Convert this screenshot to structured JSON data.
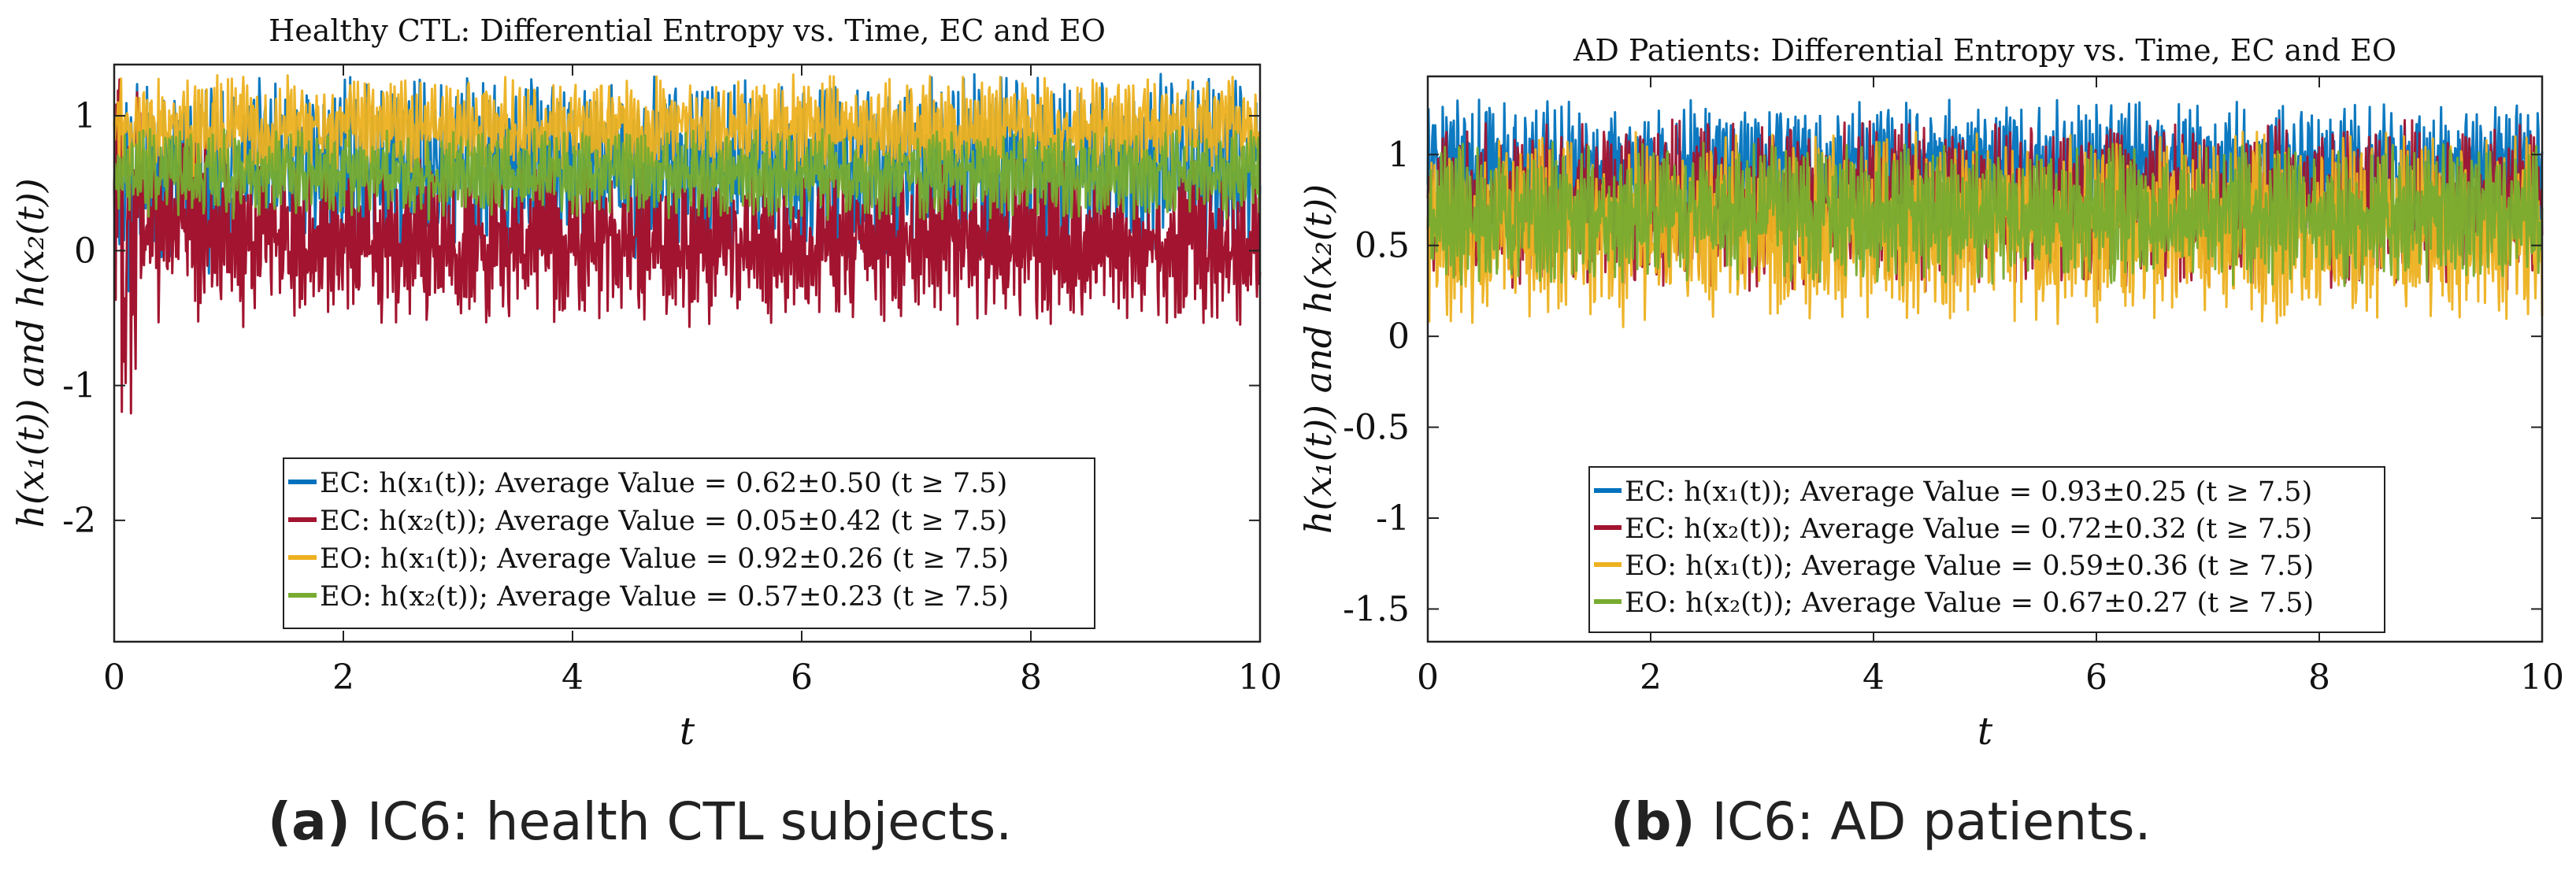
{
  "chart_data": [
    {
      "type": "line",
      "panel": "a",
      "title": "Healthy CTL: Differential Entropy vs. Time, EC and EO",
      "xlabel": "t",
      "ylabel": "h(x₁(t)) and h(x₂(t))",
      "xlim": [
        0,
        10
      ],
      "ylim": [
        -2.9,
        1.38
      ],
      "xticks": [
        0,
        2,
        4,
        6,
        8,
        10
      ],
      "xtick_labels": [
        "0",
        "2",
        "4",
        "6",
        "8",
        "10"
      ],
      "yticks": [
        -2,
        -1,
        0,
        1
      ],
      "ytick_labels": [
        "-2",
        "-1",
        "0",
        "1"
      ],
      "legend_position": "bottom-right",
      "series": [
        {
          "name": "EC: h(x₁(t)); Average Value = 0.62±0.50 (t ≥ 7.5)",
          "color": "#0072BD",
          "mean": 0.62,
          "std": 0.5
        },
        {
          "name": "EC: h(x₂(t)); Average Value = 0.05±0.42 (t ≥ 7.5)",
          "color": "#A2142F",
          "mean": 0.05,
          "std": 0.42
        },
        {
          "name": "EO: h(x₁(t)); Average Value = 0.92±0.26 (t ≥ 7.5)",
          "color": "#EDB120",
          "mean": 0.92,
          "std": 0.26
        },
        {
          "name": "EO: h(x₂(t)); Average Value = 0.57±0.23 (t ≥ 7.5)",
          "color": "#77AC30",
          "mean": 0.57,
          "std": 0.23
        }
      ]
    },
    {
      "type": "line",
      "panel": "b",
      "title": "AD Patients: Differential Entropy vs. Time, EC and EO",
      "xlabel": "t",
      "ylabel": "h(x₁(t)) and h(x₂(t))",
      "xlim": [
        0,
        10
      ],
      "ylim": [
        -1.68,
        1.43
      ],
      "xticks": [
        0,
        2,
        4,
        6,
        8,
        10
      ],
      "xtick_labels": [
        "0",
        "2",
        "4",
        "6",
        "8",
        "10"
      ],
      "yticks": [
        -1.5,
        -1,
        -0.5,
        0,
        0.5,
        1
      ],
      "ytick_labels": [
        "-1.5",
        "-1",
        "-0.5",
        "0",
        "0.5",
        "1"
      ],
      "legend_position": "bottom-right",
      "series": [
        {
          "name": "EC: h(x₁(t)); Average Value = 0.93±0.25 (t ≥ 7.5)",
          "color": "#0072BD",
          "mean": 0.93,
          "std": 0.25
        },
        {
          "name": "EC: h(x₂(t)); Average Value = 0.72±0.32 (t ≥ 7.5)",
          "color": "#A2142F",
          "mean": 0.72,
          "std": 0.32
        },
        {
          "name": "EO: h(x₁(t)); Average Value = 0.59±0.36 (t ≥ 7.5)",
          "color": "#EDB120",
          "mean": 0.59,
          "std": 0.36
        },
        {
          "name": "EO: h(x₂(t)); Average Value = 0.67±0.27 (t ≥ 7.5)",
          "color": "#77AC30",
          "mean": 0.67,
          "std": 0.27
        }
      ]
    }
  ],
  "captions": [
    {
      "letter": "(a)",
      "text": " IC6: health CTL subjects."
    },
    {
      "letter": "(b)",
      "text": " IC6: AD patients."
    }
  ]
}
